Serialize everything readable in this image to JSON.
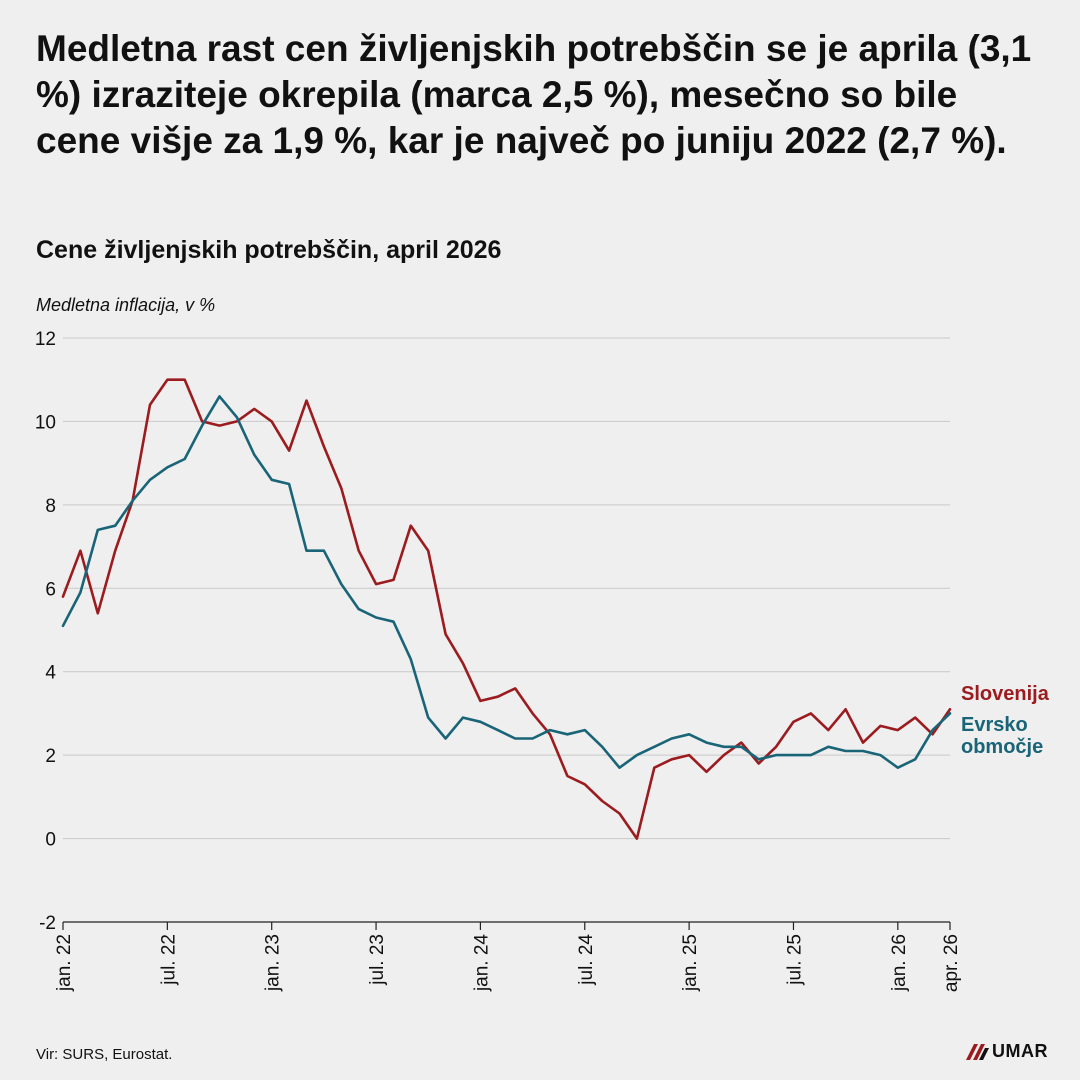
{
  "headline": "Medletna rast cen življenjskih potrebščin se je aprila (3,1 %) izraziteje okrepila (marca 2,5 %), mesečno so bile cene višje za 1,9 %, kar je največ po juniju 2022 (2,7 %).",
  "source": "Vir: SURS, Eurostat.",
  "logo": {
    "text": "UMAR",
    "icon": "umar-logo-icon"
  },
  "chart_data": {
    "type": "line",
    "title": "Cene življenjskih potrebščin, april 2026",
    "ylabel": "Medletna inflacija, v %",
    "xlabel": "",
    "ylim": [
      -2,
      12
    ],
    "yticks": [
      -2,
      0,
      2,
      4,
      6,
      8,
      10,
      12
    ],
    "grid": "horizontal",
    "legend_placement": "right-end",
    "x_start": "jan. 22",
    "x_ticks": [
      {
        "index": 0,
        "label": "jan. 22"
      },
      {
        "index": 6,
        "label": "jul. 22"
      },
      {
        "index": 12,
        "label": "jan. 23"
      },
      {
        "index": 18,
        "label": "jul. 23"
      },
      {
        "index": 24,
        "label": "jan. 24"
      },
      {
        "index": 30,
        "label": "jul. 24"
      },
      {
        "index": 36,
        "label": "jan. 25"
      },
      {
        "index": 42,
        "label": "jul. 25"
      },
      {
        "index": 48,
        "label": "jan. 26"
      },
      {
        "index": 51,
        "label": "apr. 26"
      }
    ],
    "series": [
      {
        "name": "Slovenija",
        "color": "#9b1b1f",
        "values": [
          5.8,
          6.9,
          5.4,
          6.9,
          8.1,
          10.4,
          11.0,
          11.0,
          10.0,
          9.9,
          10.0,
          10.3,
          10.0,
          9.3,
          10.5,
          9.4,
          8.4,
          6.9,
          6.1,
          6.2,
          7.5,
          6.9,
          4.9,
          4.2,
          3.3,
          3.4,
          3.6,
          3.0,
          2.5,
          1.5,
          1.3,
          0.9,
          0.6,
          0.0,
          1.7,
          1.9,
          2.0,
          1.6,
          2.0,
          2.3,
          1.8,
          2.2,
          2.8,
          3.0,
          2.6,
          3.1,
          2.3,
          2.7,
          2.6,
          2.9,
          2.5,
          3.1
        ]
      },
      {
        "name": "Evrsko območje",
        "color": "#1a6478",
        "values": [
          5.1,
          5.9,
          7.4,
          7.5,
          8.1,
          8.6,
          8.9,
          9.1,
          9.9,
          10.6,
          10.1,
          9.2,
          8.6,
          8.5,
          6.9,
          6.9,
          6.1,
          5.5,
          5.3,
          5.2,
          4.3,
          2.9,
          2.4,
          2.9,
          2.8,
          2.6,
          2.4,
          2.4,
          2.6,
          2.5,
          2.6,
          2.2,
          1.7,
          2.0,
          2.2,
          2.4,
          2.5,
          2.3,
          2.2,
          2.2,
          1.9,
          2.0,
          2.0,
          2.0,
          2.2,
          2.1,
          2.1,
          2.0,
          1.7,
          1.9,
          2.6,
          3.0
        ]
      }
    ],
    "legend": [
      {
        "lines": [
          "Slovenija"
        ],
        "color": "#9b1b1f"
      },
      {
        "lines": [
          "Evrsko",
          "območje"
        ],
        "color": "#1a6478"
      }
    ]
  }
}
